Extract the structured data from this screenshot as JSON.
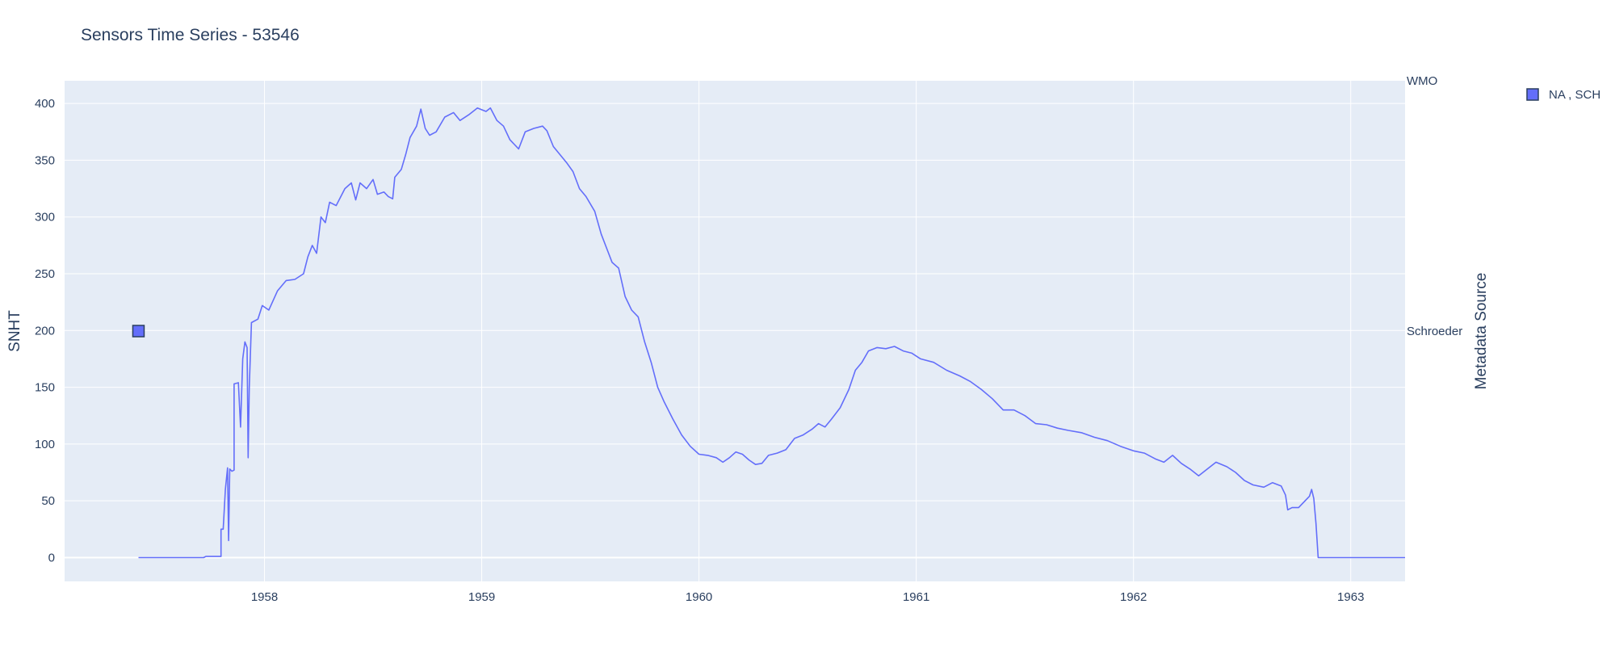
{
  "chart_data": {
    "type": "line",
    "title": "Sensors Time Series - 53546",
    "ylabel": "SNHT",
    "y2label": "Metadata Source",
    "xlim": [
      1957.08,
      1963.25
    ],
    "ylim": [
      -21,
      420
    ],
    "x_ticks": [
      1958,
      1959,
      1960,
      1961,
      1962,
      1963
    ],
    "y_ticks": [
      0,
      50,
      100,
      150,
      200,
      250,
      300,
      350,
      400
    ],
    "y2_categories": [
      "Schroeder",
      "WMO"
    ],
    "grid": true,
    "legend_placement": "top-right",
    "colors": {
      "series": "#636efa",
      "plot_bg": "#e5ecf6",
      "grid": "#ffffff",
      "text": "#2a3f5f"
    },
    "series": [
      {
        "points": [
          [
            1957.42,
            0
          ],
          [
            1957.6,
            0
          ],
          [
            1957.72,
            0
          ],
          [
            1957.73,
            1
          ],
          [
            1957.8,
            1
          ],
          [
            1957.8,
            25
          ],
          [
            1957.81,
            25
          ],
          [
            1957.82,
            60
          ],
          [
            1957.83,
            79
          ],
          [
            1957.835,
            15
          ],
          [
            1957.84,
            78
          ],
          [
            1957.85,
            76
          ],
          [
            1957.86,
            77
          ],
          [
            1957.86,
            153
          ],
          [
            1957.88,
            154
          ],
          [
            1957.89,
            115
          ],
          [
            1957.9,
            175
          ],
          [
            1957.91,
            190
          ],
          [
            1957.92,
            185
          ],
          [
            1957.925,
            88
          ],
          [
            1957.93,
            150
          ],
          [
            1957.94,
            207
          ],
          [
            1957.97,
            210
          ],
          [
            1957.99,
            222
          ],
          [
            1958.02,
            218
          ],
          [
            1958.06,
            235
          ],
          [
            1958.1,
            244
          ],
          [
            1958.14,
            245
          ],
          [
            1958.18,
            250
          ],
          [
            1958.2,
            265
          ],
          [
            1958.22,
            275
          ],
          [
            1958.24,
            268
          ],
          [
            1958.26,
            300
          ],
          [
            1958.28,
            295
          ],
          [
            1958.3,
            313
          ],
          [
            1958.33,
            310
          ],
          [
            1958.37,
            325
          ],
          [
            1958.4,
            330
          ],
          [
            1958.42,
            315
          ],
          [
            1958.44,
            330
          ],
          [
            1958.47,
            325
          ],
          [
            1958.5,
            333
          ],
          [
            1958.52,
            320
          ],
          [
            1958.55,
            322
          ],
          [
            1958.57,
            318
          ],
          [
            1958.59,
            316
          ],
          [
            1958.6,
            335
          ],
          [
            1958.63,
            342
          ],
          [
            1958.65,
            355
          ],
          [
            1958.67,
            370
          ],
          [
            1958.7,
            380
          ],
          [
            1958.72,
            395
          ],
          [
            1958.74,
            378
          ],
          [
            1958.76,
            372
          ],
          [
            1958.79,
            375
          ],
          [
            1958.83,
            388
          ],
          [
            1958.87,
            392
          ],
          [
            1958.9,
            385
          ],
          [
            1958.94,
            390
          ],
          [
            1958.98,
            396
          ],
          [
            1959.02,
            393
          ],
          [
            1959.04,
            396
          ],
          [
            1959.07,
            385
          ],
          [
            1959.1,
            380
          ],
          [
            1959.13,
            368
          ],
          [
            1959.17,
            360
          ],
          [
            1959.2,
            375
          ],
          [
            1959.24,
            378
          ],
          [
            1959.28,
            380
          ],
          [
            1959.3,
            376
          ],
          [
            1959.33,
            362
          ],
          [
            1959.36,
            355
          ],
          [
            1959.39,
            348
          ],
          [
            1959.42,
            340
          ],
          [
            1959.45,
            325
          ],
          [
            1959.48,
            318
          ],
          [
            1959.52,
            305
          ],
          [
            1959.55,
            285
          ],
          [
            1959.58,
            270
          ],
          [
            1959.6,
            260
          ],
          [
            1959.63,
            255
          ],
          [
            1959.66,
            230
          ],
          [
            1959.69,
            218
          ],
          [
            1959.72,
            212
          ],
          [
            1959.75,
            190
          ],
          [
            1959.78,
            172
          ],
          [
            1959.81,
            150
          ],
          [
            1959.84,
            137
          ],
          [
            1959.88,
            122
          ],
          [
            1959.92,
            108
          ],
          [
            1959.96,
            98
          ],
          [
            1960.0,
            91
          ],
          [
            1960.04,
            90
          ],
          [
            1960.08,
            88
          ],
          [
            1960.11,
            84
          ],
          [
            1960.14,
            88
          ],
          [
            1960.17,
            93
          ],
          [
            1960.2,
            91
          ],
          [
            1960.23,
            86
          ],
          [
            1960.26,
            82
          ],
          [
            1960.29,
            83
          ],
          [
            1960.32,
            90
          ],
          [
            1960.36,
            92
          ],
          [
            1960.4,
            95
          ],
          [
            1960.44,
            105
          ],
          [
            1960.48,
            108
          ],
          [
            1960.52,
            113
          ],
          [
            1960.55,
            118
          ],
          [
            1960.58,
            115
          ],
          [
            1960.61,
            122
          ],
          [
            1960.65,
            132
          ],
          [
            1960.69,
            148
          ],
          [
            1960.72,
            165
          ],
          [
            1960.75,
            172
          ],
          [
            1960.78,
            182
          ],
          [
            1960.82,
            185
          ],
          [
            1960.86,
            184
          ],
          [
            1960.9,
            186
          ],
          [
            1960.94,
            182
          ],
          [
            1960.98,
            180
          ],
          [
            1961.02,
            175
          ],
          [
            1961.08,
            172
          ],
          [
            1961.14,
            165
          ],
          [
            1961.2,
            160
          ],
          [
            1961.25,
            155
          ],
          [
            1961.3,
            148
          ],
          [
            1961.35,
            140
          ],
          [
            1961.4,
            130
          ],
          [
            1961.45,
            130
          ],
          [
            1961.5,
            125
          ],
          [
            1961.55,
            118
          ],
          [
            1961.6,
            117
          ],
          [
            1961.65,
            114
          ],
          [
            1961.7,
            112
          ],
          [
            1961.76,
            110
          ],
          [
            1961.82,
            106
          ],
          [
            1961.88,
            103
          ],
          [
            1961.94,
            98
          ],
          [
            1962.0,
            94
          ],
          [
            1962.05,
            92
          ],
          [
            1962.1,
            87
          ],
          [
            1962.14,
            84
          ],
          [
            1962.18,
            90
          ],
          [
            1962.22,
            83
          ],
          [
            1962.26,
            78
          ],
          [
            1962.3,
            72
          ],
          [
            1962.34,
            78
          ],
          [
            1962.38,
            84
          ],
          [
            1962.43,
            80
          ],
          [
            1962.47,
            75
          ],
          [
            1962.51,
            68
          ],
          [
            1962.55,
            64
          ],
          [
            1962.6,
            62
          ],
          [
            1962.64,
            66
          ],
          [
            1962.68,
            63
          ],
          [
            1962.7,
            55
          ],
          [
            1962.71,
            42
          ],
          [
            1962.73,
            44
          ],
          [
            1962.76,
            44
          ],
          [
            1962.79,
            50
          ],
          [
            1962.81,
            54
          ],
          [
            1962.82,
            60
          ],
          [
            1962.83,
            52
          ],
          [
            1962.84,
            30
          ],
          [
            1962.85,
            0
          ],
          [
            1963.0,
            0
          ],
          [
            1963.25,
            0
          ]
        ]
      },
      {
        "name": "NA , SCH",
        "type": "marker",
        "axis": "y2",
        "points": [
          [
            1957.42,
            "Schroeder"
          ]
        ]
      }
    ]
  }
}
